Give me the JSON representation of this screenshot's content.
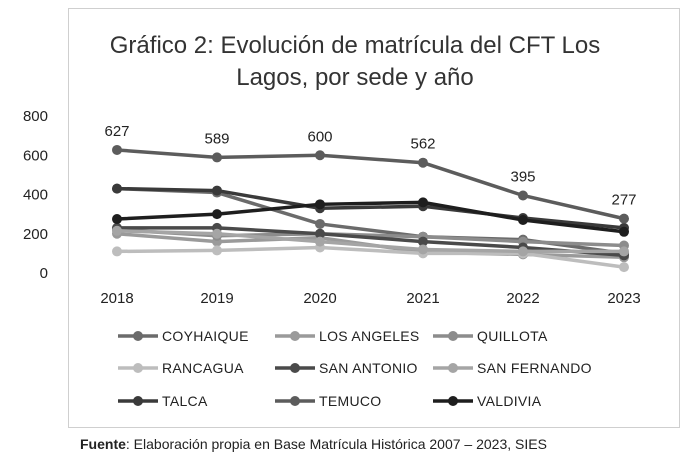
{
  "chart_data": {
    "type": "line",
    "title": "Gráfico 2: Evolución de matrícula del CFT Los Lagos, por sede y año",
    "title_lines": [
      "Gráfico 2: Evolución de matrícula del CFT Los",
      "Lagos, por sede y año"
    ],
    "x": [
      "2018",
      "2019",
      "2020",
      "2021",
      "2022",
      "2023"
    ],
    "ylim": [
      0,
      800
    ],
    "yticks": [
      "800",
      "600",
      "400",
      "200",
      "0"
    ],
    "grid": false,
    "legend_position": "bottom",
    "series": [
      {
        "name": "COYHAIQUE",
        "color": "#6b6b6b",
        "values": [
          430,
          410,
          250,
          185,
          170,
          100
        ]
      },
      {
        "name": "LOS ANGELES",
        "color": "#9a9a9a",
        "values": [
          200,
          160,
          180,
          105,
          95,
          80
        ]
      },
      {
        "name": "QUILLOTA",
        "color": "#8c8c8c",
        "values": [
          220,
          190,
          200,
          185,
          160,
          140
        ]
      },
      {
        "name": "RANCAGUA",
        "color": "#bdbdbd",
        "values": [
          110,
          115,
          130,
          100,
          100,
          30
        ]
      },
      {
        "name": "SAN ANTONIO",
        "color": "#4a4a4a",
        "values": [
          230,
          230,
          200,
          160,
          130,
          90
        ]
      },
      {
        "name": "SAN FERNANDO",
        "color": "#a5a5a5",
        "values": [
          215,
          200,
          160,
          120,
          110,
          110
        ]
      },
      {
        "name": "TALCA",
        "color": "#3a3a3a",
        "values": [
          430,
          420,
          330,
          340,
          280,
          230
        ]
      },
      {
        "name": "TEMUCO",
        "color": "#5c5c5c",
        "values": [
          627,
          589,
          600,
          562,
          395,
          277
        ]
      },
      {
        "name": "VALDIVIA",
        "color": "#1e1e1e",
        "values": [
          275,
          300,
          350,
          360,
          270,
          210
        ]
      }
    ],
    "data_labels": [
      {
        "series": "TEMUCO",
        "index": 0,
        "text": "627"
      },
      {
        "series": "TEMUCO",
        "index": 1,
        "text": "589"
      },
      {
        "series": "TEMUCO",
        "index": 2,
        "text": "600"
      },
      {
        "series": "TEMUCO",
        "index": 3,
        "text": "562"
      },
      {
        "series": "TEMUCO",
        "index": 4,
        "text": "395"
      },
      {
        "series": "TEMUCO",
        "index": 5,
        "text": "277"
      }
    ]
  },
  "source": {
    "label": "Fuente",
    "text": ": Elaboración propia en Base Matrícula Histórica 2007 – 2023, SIES"
  }
}
